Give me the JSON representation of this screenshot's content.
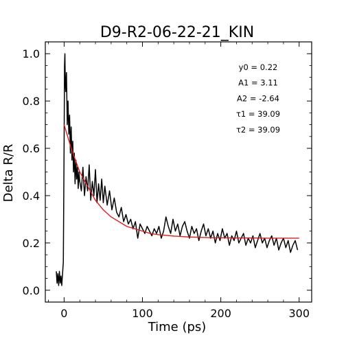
{
  "chart_data": {
    "type": "line",
    "title": "D9-R2-06-22-21_KIN",
    "xlabel": "Time (ps)",
    "ylabel": "Delta R/R",
    "xlim": [
      -24,
      316
    ],
    "ylim": [
      -0.05,
      1.05
    ],
    "x_ticks": [
      0,
      100,
      200,
      300
    ],
    "x_tick_labels": [
      "0",
      "100",
      "200",
      "300"
    ],
    "y_ticks": [
      0.0,
      0.2,
      0.4,
      0.6,
      0.8,
      1.0
    ],
    "y_tick_labels": [
      "0.0",
      "0.2",
      "0.4",
      "0.6",
      "0.8",
      "1.0"
    ],
    "grid": false,
    "series": [
      {
        "color": "#000000",
        "x": [
          -10,
          -9,
          -8,
          -7,
          -6,
          -5,
          -4,
          -3,
          -2,
          -1,
          0,
          0.5,
          1,
          1.5,
          2,
          3,
          4,
          5,
          6,
          7,
          8,
          9,
          10,
          11,
          12,
          13,
          14,
          15,
          16,
          17,
          18,
          19,
          20,
          22,
          24,
          26,
          28,
          30,
          32,
          34,
          36,
          38,
          40,
          42,
          44,
          46,
          48,
          50,
          52,
          55,
          58,
          61,
          64,
          67,
          70,
          73,
          76,
          79,
          82,
          85,
          88,
          91,
          94,
          97,
          100,
          103,
          106,
          109,
          112,
          115,
          118,
          121,
          124,
          127,
          130,
          133,
          136,
          139,
          142,
          145,
          148,
          151,
          154,
          157,
          160,
          163,
          166,
          169,
          172,
          175,
          178,
          181,
          184,
          187,
          190,
          193,
          196,
          199,
          202,
          205,
          208,
          211,
          214,
          217,
          220,
          223,
          226,
          229,
          232,
          235,
          238,
          241,
          244,
          247,
          250,
          253,
          256,
          259,
          262,
          265,
          268,
          271,
          274,
          277,
          280,
          283,
          286,
          289,
          292,
          295,
          298
        ],
        "y": [
          0.08,
          0.03,
          0.07,
          0.02,
          0.08,
          0.03,
          0.06,
          0.02,
          0.07,
          0.12,
          0.62,
          0.95,
          1.0,
          0.88,
          0.84,
          0.92,
          0.7,
          0.8,
          0.66,
          0.74,
          0.58,
          0.69,
          0.55,
          0.63,
          0.5,
          0.58,
          0.45,
          0.55,
          0.47,
          0.52,
          0.43,
          0.5,
          0.46,
          0.42,
          0.52,
          0.4,
          0.48,
          0.42,
          0.53,
          0.38,
          0.46,
          0.4,
          0.51,
          0.37,
          0.45,
          0.38,
          0.47,
          0.37,
          0.44,
          0.36,
          0.42,
          0.34,
          0.39,
          0.33,
          0.31,
          0.35,
          0.29,
          0.32,
          0.28,
          0.3,
          0.26,
          0.29,
          0.22,
          0.28,
          0.26,
          0.24,
          0.27,
          0.25,
          0.23,
          0.26,
          0.24,
          0.27,
          0.22,
          0.25,
          0.31,
          0.27,
          0.24,
          0.3,
          0.25,
          0.28,
          0.23,
          0.27,
          0.29,
          0.25,
          0.22,
          0.27,
          0.24,
          0.26,
          0.21,
          0.25,
          0.28,
          0.23,
          0.26,
          0.22,
          0.25,
          0.2,
          0.24,
          0.21,
          0.26,
          0.22,
          0.24,
          0.19,
          0.23,
          0.21,
          0.25,
          0.2,
          0.22,
          0.24,
          0.19,
          0.22,
          0.2,
          0.23,
          0.18,
          0.21,
          0.24,
          0.2,
          0.22,
          0.18,
          0.21,
          0.23,
          0.19,
          0.22,
          0.17,
          0.2,
          0.22,
          0.18,
          0.21,
          0.16,
          0.19,
          0.21,
          0.17
        ]
      },
      {
        "color": "#e41a1c",
        "x": [
          0,
          10,
          20,
          30,
          40,
          50,
          60,
          70,
          80,
          90,
          100,
          110,
          120,
          130,
          140,
          150,
          160,
          170,
          180,
          190,
          200,
          220,
          240,
          260,
          280,
          300
        ],
        "y": [
          0.7,
          0.59,
          0.5,
          0.44,
          0.38,
          0.34,
          0.31,
          0.29,
          0.27,
          0.26,
          0.25,
          0.24,
          0.235,
          0.232,
          0.229,
          0.227,
          0.225,
          0.224,
          0.223,
          0.222,
          0.222,
          0.221,
          0.221,
          0.22,
          0.22,
          0.22
        ]
      }
    ],
    "annotations": [
      "y0 = 0.22",
      "A1 = 3.11",
      "A2 = -2.64",
      "τ1 = 39.09",
      "τ2 = 39.09"
    ]
  }
}
